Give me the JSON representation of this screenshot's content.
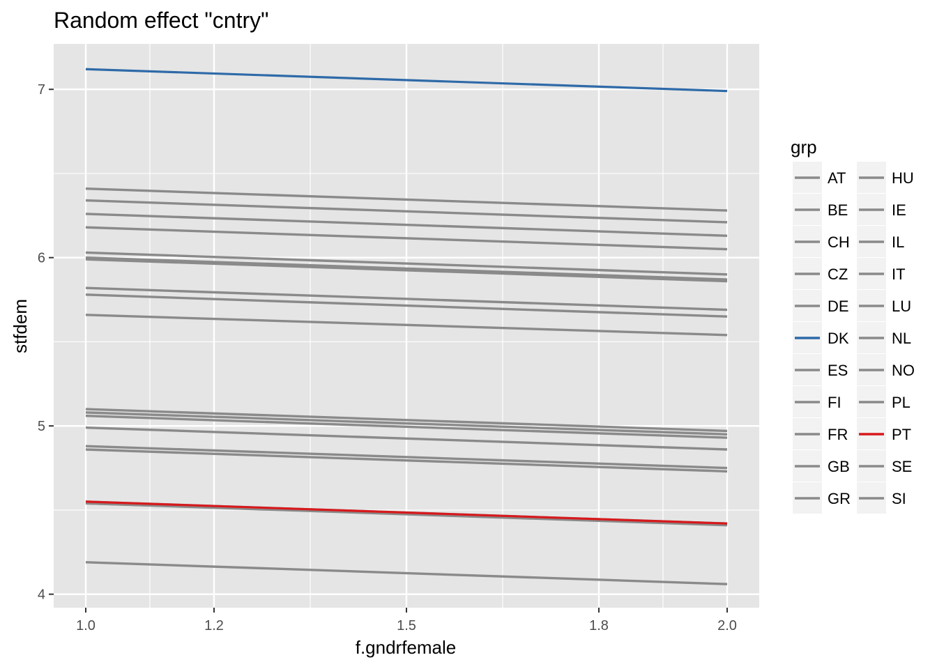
{
  "chart_data": {
    "type": "line",
    "title": "Random effect \"cntry\"",
    "xlabel": "f.gndrfemale",
    "ylabel": "stfdem",
    "xlim": [
      0.95,
      2.05
    ],
    "ylim": [
      3.92,
      7.27
    ],
    "x_ticks": [
      1.0,
      1.2,
      1.5,
      1.8,
      2.0
    ],
    "x_tick_labels": [
      "1.0",
      "1.2",
      "1.5",
      "1.8",
      "2.0"
    ],
    "y_ticks": [
      4,
      5,
      6,
      7
    ],
    "y_tick_labels": [
      "4",
      "5",
      "6",
      "7"
    ],
    "grid": true,
    "legend": {
      "title": "grp",
      "position": "right",
      "columns": 2
    },
    "colors": {
      "default": "#8a8a8a",
      "DK": "#2e6aa8",
      "PT": "#d7191c",
      "panel": "#e5e5e5",
      "grid": "#ffffff"
    },
    "x": [
      1.0,
      2.0
    ],
    "series": [
      {
        "name": "AT",
        "values": [
          5.1,
          4.97
        ]
      },
      {
        "name": "BE",
        "values": [
          5.66,
          5.54
        ]
      },
      {
        "name": "CH",
        "values": [
          6.41,
          6.28
        ]
      },
      {
        "name": "CZ",
        "values": [
          4.54,
          4.41
        ]
      },
      {
        "name": "DE",
        "values": [
          5.06,
          4.93
        ]
      },
      {
        "name": "DK",
        "values": [
          7.12,
          6.99
        ]
      },
      {
        "name": "ES",
        "values": [
          4.99,
          4.86
        ]
      },
      {
        "name": "FI",
        "values": [
          6.26,
          6.13
        ]
      },
      {
        "name": "FR",
        "values": [
          4.86,
          4.73
        ]
      },
      {
        "name": "GB",
        "values": [
          5.82,
          5.69
        ]
      },
      {
        "name": "GR",
        "values": [
          4.19,
          4.06
        ]
      },
      {
        "name": "HU",
        "values": [
          4.54,
          4.42
        ]
      },
      {
        "name": "IE",
        "values": [
          5.08,
          4.95
        ]
      },
      {
        "name": "IL",
        "values": [
          4.88,
          4.75
        ]
      },
      {
        "name": "IT",
        "values": [
          4.55,
          4.42
        ]
      },
      {
        "name": "LU",
        "values": [
          6.34,
          6.21
        ]
      },
      {
        "name": "NL",
        "values": [
          6.0,
          5.87
        ]
      },
      {
        "name": "NO",
        "values": [
          6.18,
          6.05
        ]
      },
      {
        "name": "PL",
        "values": [
          5.78,
          5.65
        ]
      },
      {
        "name": "PT",
        "values": [
          4.55,
          4.42
        ]
      },
      {
        "name": "SE",
        "values": [
          6.03,
          5.9
        ]
      },
      {
        "name": "SI",
        "values": [
          5.99,
          5.86
        ]
      }
    ]
  }
}
